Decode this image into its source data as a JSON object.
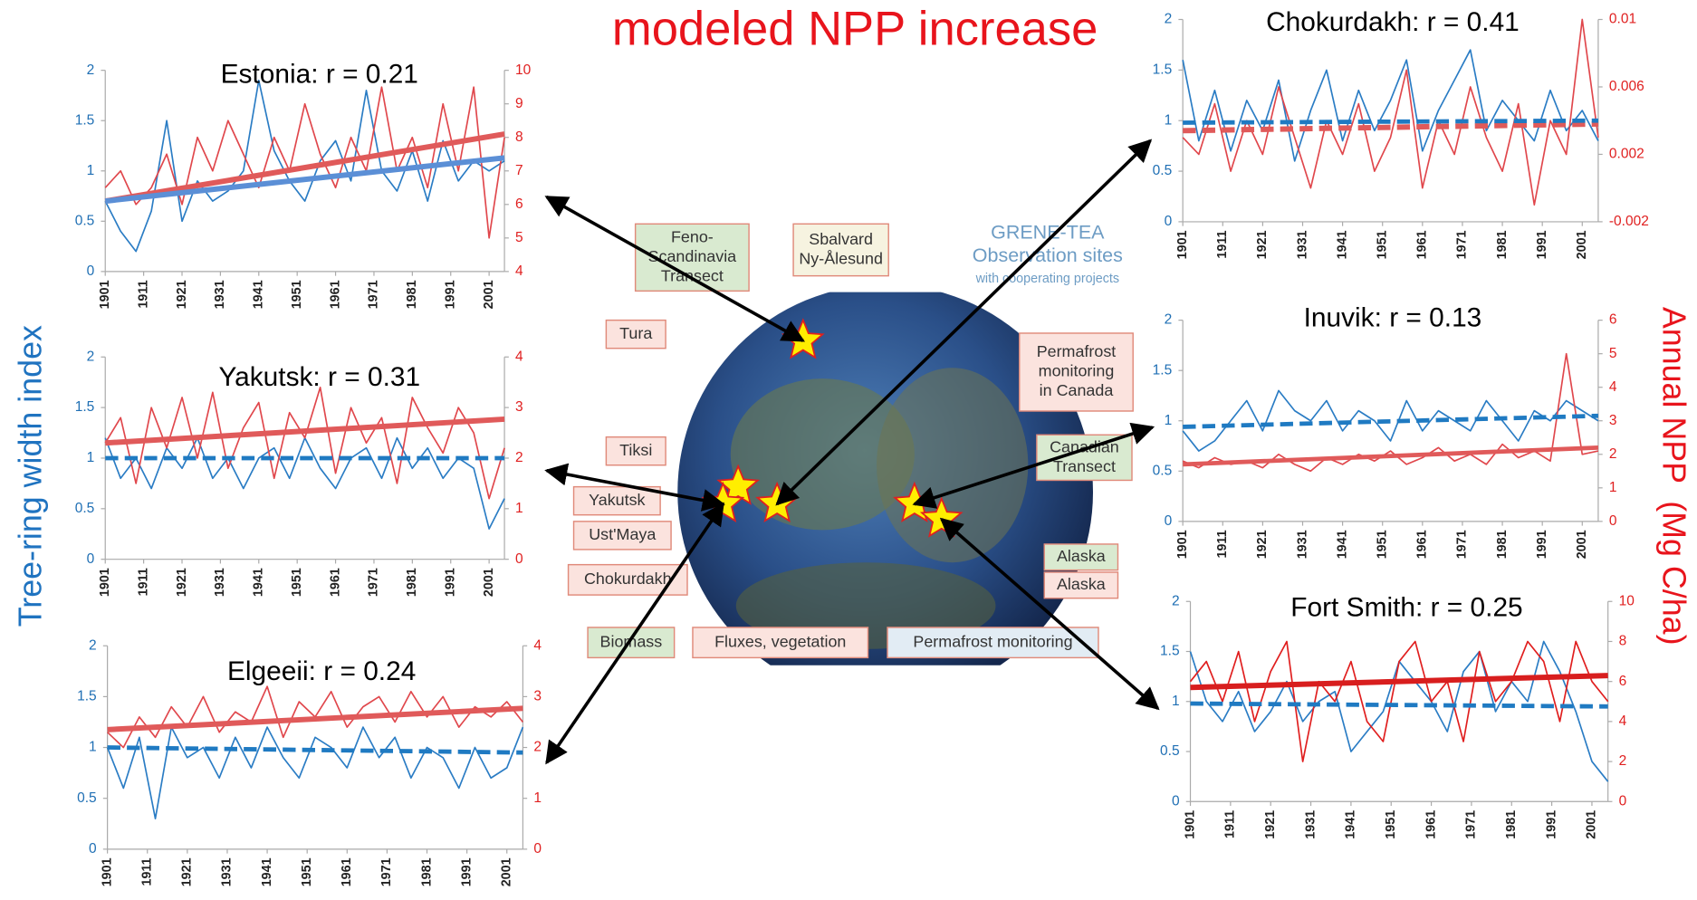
{
  "heading": "modeled NPP increase",
  "left_axis_label": "Tree-ring width index",
  "right_axis_label": "Annual NPP  (Mg C/ha)",
  "map": {
    "title": [
      "GRENE-TEA",
      "Observation sites",
      "with cooperating projects"
    ],
    "boxes": [
      {
        "lines": [
          "Feno-",
          "Scandinavia",
          "Transect"
        ]
      },
      {
        "lines": [
          "Sbalvard",
          "Ny-Ålesund"
        ]
      },
      {
        "lines": [
          "Tura"
        ]
      },
      {
        "lines": [
          "Permafrost",
          "monitoring",
          "in Canada"
        ]
      },
      {
        "lines": [
          "Tiksi"
        ]
      },
      {
        "lines": [
          "Canadian",
          "Transect"
        ]
      },
      {
        "lines": [
          "Yakutsk"
        ]
      },
      {
        "lines": [
          "Ust'Maya"
        ]
      },
      {
        "lines": [
          "Chokurdakh"
        ]
      },
      {
        "lines": [
          "Alaska"
        ]
      },
      {
        "lines": [
          "Alaska"
        ]
      },
      {
        "lines": [
          "Biomass"
        ]
      },
      {
        "lines": [
          "Fluxes, vegetation"
        ]
      },
      {
        "lines": [
          "Permafrost monitoring"
        ]
      }
    ]
  },
  "chart_data": [
    {
      "type": "line",
      "title": "Estonia: r = 0.21",
      "x": [
        1901,
        1905,
        1909,
        1913,
        1917,
        1921,
        1925,
        1929,
        1933,
        1937,
        1941,
        1945,
        1949,
        1953,
        1957,
        1961,
        1965,
        1969,
        1973,
        1977,
        1981,
        1985,
        1989,
        1993,
        1997,
        2001,
        2005
      ],
      "xlim": [
        1901,
        2005
      ],
      "xticks": [
        1901,
        1911,
        1921,
        1931,
        1941,
        1951,
        1961,
        1971,
        1981,
        1991,
        2001
      ],
      "ylim": [
        0,
        2
      ],
      "yticks": [
        0,
        0.5,
        1,
        1.5,
        2
      ],
      "y2lim": [
        4,
        10
      ],
      "y2ticks": [
        4,
        5,
        6,
        7,
        8,
        9,
        10
      ],
      "series": [
        {
          "color": "#2a7cc4",
          "values": [
            0.7,
            0.4,
            0.2,
            0.6,
            1.5,
            0.5,
            0.9,
            0.7,
            0.8,
            1.0,
            1.9,
            1.2,
            0.9,
            0.7,
            1.1,
            1.3,
            0.9,
            1.8,
            1.0,
            0.8,
            1.2,
            0.7,
            1.3,
            0.9,
            1.1,
            1.0,
            1.1
          ]
        },
        {
          "color": "#e0474c",
          "axis": "y2",
          "values": [
            6.5,
            7,
            6,
            6.5,
            7.5,
            6,
            8,
            7,
            8.5,
            7.5,
            6.5,
            8,
            7,
            9,
            7.5,
            6.5,
            8,
            7,
            9.5,
            7,
            8,
            6.5,
            9,
            7,
            9.5,
            5,
            8
          ]
        },
        {
          "color": "#e05a5a",
          "axis": "y2",
          "x": [
            1901,
            2005
          ],
          "values": [
            6.1,
            8.1
          ],
          "line_width": 5
        },
        {
          "color": "#5b8fd6",
          "x": [
            1901,
            2005
          ],
          "values": [
            0.7,
            1.13
          ],
          "line_width": 5
        }
      ]
    },
    {
      "type": "line",
      "title": "Yakutsk: r = 0.31",
      "x": [
        1901,
        1905,
        1909,
        1913,
        1917,
        1921,
        1925,
        1929,
        1933,
        1937,
        1941,
        1945,
        1949,
        1953,
        1957,
        1961,
        1965,
        1969,
        1973,
        1977,
        1981,
        1985,
        1989,
        1993,
        1997,
        2001,
        2005
      ],
      "xlim": [
        1901,
        2005
      ],
      "xticks": [
        1901,
        1911,
        1921,
        1931,
        1941,
        1951,
        1961,
        1971,
        1981,
        1991,
        2001
      ],
      "ylim": [
        0,
        2
      ],
      "yticks": [
        0,
        0.5,
        1,
        1.5,
        2
      ],
      "y2lim": [
        0,
        4
      ],
      "y2ticks": [
        0,
        1,
        2,
        3,
        4
      ],
      "series": [
        {
          "color": "#2a7cc4",
          "values": [
            1.2,
            0.8,
            1.0,
            0.7,
            1.1,
            0.9,
            1.2,
            0.8,
            1.0,
            0.7,
            1.0,
            1.1,
            0.8,
            1.2,
            0.9,
            0.7,
            1.0,
            1.1,
            0.8,
            1.2,
            0.9,
            1.1,
            0.8,
            1.0,
            0.9,
            0.3,
            0.6
          ]
        },
        {
          "color": "#e0474c",
          "axis": "y2",
          "values": [
            2.3,
            2.8,
            1.5,
            3,
            2.2,
            3.2,
            2,
            3.3,
            1.8,
            2.6,
            3.1,
            1.6,
            2.9,
            2.4,
            3.4,
            1.7,
            3,
            2.3,
            2.8,
            1.5,
            3.2,
            2.6,
            2.1,
            3,
            2.5,
            1.2,
            2.2
          ]
        },
        {
          "color": "#e05a5a",
          "axis": "y2",
          "x": [
            1901,
            2005
          ],
          "values": [
            2.3,
            2.77
          ],
          "line_width": 5
        },
        {
          "color": "#1f7ac2",
          "x": [
            1901,
            2005
          ],
          "values": [
            1.0,
            1.0
          ],
          "line_width": 4,
          "dash": true
        }
      ]
    },
    {
      "type": "line",
      "title": "Elgeeii: r = 0.24",
      "x": [
        1901,
        1905,
        1909,
        1913,
        1917,
        1921,
        1925,
        1929,
        1933,
        1937,
        1941,
        1945,
        1949,
        1953,
        1957,
        1961,
        1965,
        1969,
        1973,
        1977,
        1981,
        1985,
        1989,
        1993,
        1997,
        2001,
        2005
      ],
      "xlim": [
        1901,
        2005
      ],
      "xticks": [
        1901,
        1911,
        1921,
        1931,
        1941,
        1951,
        1961,
        1971,
        1981,
        1991,
        2001
      ],
      "ylim": [
        0,
        2
      ],
      "yticks": [
        0,
        0.5,
        1,
        1.5,
        2
      ],
      "y2lim": [
        0,
        4
      ],
      "y2ticks": [
        0,
        1,
        2,
        3,
        4
      ],
      "series": [
        {
          "color": "#2a7cc4",
          "values": [
            1.0,
            0.6,
            1.1,
            0.3,
            1.2,
            0.9,
            1.0,
            0.7,
            1.1,
            0.8,
            1.2,
            0.9,
            0.7,
            1.1,
            1.0,
            0.8,
            1.2,
            0.9,
            1.1,
            0.7,
            1.0,
            0.9,
            0.6,
            1.0,
            0.7,
            0.8,
            1.2
          ]
        },
        {
          "color": "#e0474c",
          "axis": "y2",
          "values": [
            2.3,
            2.0,
            2.6,
            2.2,
            2.8,
            2.4,
            3.0,
            2.3,
            2.7,
            2.5,
            3.2,
            2.2,
            2.9,
            2.6,
            3.1,
            2.4,
            2.8,
            3.0,
            2.5,
            3.1,
            2.6,
            3.0,
            2.4,
            2.8,
            2.6,
            2.9,
            2.5
          ]
        },
        {
          "color": "#e05a5a",
          "axis": "y2",
          "x": [
            1901,
            2005
          ],
          "values": [
            2.35,
            2.77
          ],
          "line_width": 5
        },
        {
          "color": "#1f7ac2",
          "x": [
            1901,
            2005
          ],
          "values": [
            1.0,
            0.95
          ],
          "line_width": 4,
          "dash": true
        }
      ]
    },
    {
      "type": "line",
      "title": "Chokurdakh: r = 0.41",
      "x": [
        1901,
        1905,
        1909,
        1913,
        1917,
        1921,
        1925,
        1929,
        1933,
        1937,
        1941,
        1945,
        1949,
        1953,
        1957,
        1961,
        1965,
        1969,
        1973,
        1977,
        1981,
        1985,
        1989,
        1993,
        1997,
        2001,
        2005
      ],
      "xlim": [
        1901,
        2005
      ],
      "xticks": [
        1901,
        1911,
        1921,
        1931,
        1941,
        1951,
        1961,
        1971,
        1981,
        1991,
        2001
      ],
      "ylim": [
        0,
        2
      ],
      "yticks": [
        0,
        0.5,
        1,
        1.5,
        2
      ],
      "y2lim": [
        -0.002,
        0.01
      ],
      "y2ticks": [
        -0.002,
        0.002,
        0.006,
        0.01
      ],
      "series": [
        {
          "color": "#2a7cc4",
          "values": [
            1.6,
            0.8,
            1.3,
            0.7,
            1.2,
            0.9,
            1.4,
            0.6,
            1.1,
            1.5,
            0.8,
            1.3,
            0.9,
            1.2,
            1.6,
            0.7,
            1.1,
            1.4,
            1.7,
            0.9,
            1.2,
            1.0,
            0.8,
            1.3,
            0.9,
            1.1,
            0.8
          ]
        },
        {
          "color": "#e0474c",
          "axis": "y2",
          "values": [
            0.003,
            0.002,
            0.005,
            0.001,
            0.004,
            0.002,
            0.006,
            0.003,
            0.0,
            0.004,
            0.002,
            0.005,
            0.001,
            0.003,
            0.007,
            0.0,
            0.004,
            0.002,
            0.006,
            0.003,
            0.001,
            0.005,
            -0.001,
            0.004,
            0.002,
            0.01,
            0.003
          ]
        },
        {
          "color": "#e05a5a",
          "axis": "y2",
          "x": [
            1901,
            2005
          ],
          "values": [
            0.0034,
            0.0038
          ],
          "line_width": 5,
          "dash": true
        },
        {
          "color": "#1f7ac2",
          "x": [
            1901,
            2005
          ],
          "values": [
            0.98,
            1.0
          ],
          "line_width": 4,
          "dash": true
        }
      ]
    },
    {
      "type": "line",
      "title": "Inuvik: r = 0.13",
      "x": [
        1901,
        1905,
        1909,
        1913,
        1917,
        1921,
        1925,
        1929,
        1933,
        1937,
        1941,
        1945,
        1949,
        1953,
        1957,
        1961,
        1965,
        1969,
        1973,
        1977,
        1981,
        1985,
        1989,
        1993,
        1997,
        2001,
        2005
      ],
      "xlim": [
        1901,
        2005
      ],
      "xticks": [
        1901,
        1911,
        1921,
        1931,
        1941,
        1951,
        1961,
        1971,
        1981,
        1991,
        2001
      ],
      "ylim": [
        0,
        2
      ],
      "yticks": [
        0,
        0.5,
        1,
        1.5,
        2
      ],
      "y2lim": [
        0,
        6
      ],
      "y2ticks": [
        0,
        1,
        2,
        3,
        4,
        5,
        6
      ],
      "series": [
        {
          "color": "#2a7cc4",
          "values": [
            0.9,
            0.7,
            0.8,
            1.0,
            1.2,
            0.9,
            1.3,
            1.1,
            1.0,
            1.2,
            0.9,
            1.1,
            1.0,
            0.8,
            1.2,
            0.9,
            1.1,
            1.0,
            0.9,
            1.2,
            1.0,
            0.8,
            1.1,
            1.0,
            1.2,
            1.1,
            1.0
          ]
        },
        {
          "color": "#e0474c",
          "axis": "y2",
          "values": [
            1.8,
            1.6,
            1.9,
            1.7,
            1.8,
            1.6,
            2.0,
            1.7,
            1.5,
            1.9,
            1.7,
            2.0,
            1.8,
            2.1,
            1.7,
            1.9,
            2.2,
            1.8,
            2.0,
            1.7,
            2.3,
            1.9,
            2.1,
            1.8,
            5.0,
            2.0,
            2.1
          ]
        },
        {
          "color": "#e05a5a",
          "axis": "y2",
          "x": [
            1901,
            2005
          ],
          "values": [
            1.7,
            2.2
          ],
          "line_width": 4
        },
        {
          "color": "#1f7ac2",
          "x": [
            1901,
            2005
          ],
          "values": [
            0.94,
            1.05
          ],
          "line_width": 4,
          "dash": true
        }
      ]
    },
    {
      "type": "line",
      "title": "Fort Smith: r = 0.25",
      "x": [
        1901,
        1905,
        1909,
        1913,
        1917,
        1921,
        1925,
        1929,
        1933,
        1937,
        1941,
        1945,
        1949,
        1953,
        1957,
        1961,
        1965,
        1969,
        1973,
        1977,
        1981,
        1985,
        1989,
        1993,
        1997,
        2001,
        2005
      ],
      "xlim": [
        1901,
        2005
      ],
      "xticks": [
        1901,
        1911,
        1921,
        1931,
        1941,
        1951,
        1961,
        1971,
        1981,
        1991,
        2001
      ],
      "ylim": [
        0,
        2
      ],
      "yticks": [
        0,
        0.5,
        1,
        1.5,
        2
      ],
      "y2lim": [
        0,
        10
      ],
      "y2ticks": [
        0,
        2,
        4,
        6,
        8,
        10
      ],
      "series": [
        {
          "color": "#2a7cc4",
          "values": [
            1.5,
            1.0,
            0.8,
            1.1,
            0.7,
            0.9,
            1.2,
            0.8,
            1.0,
            1.1,
            0.5,
            0.7,
            0.9,
            1.4,
            1.2,
            1.0,
            0.7,
            1.3,
            1.5,
            0.9,
            1.2,
            1.0,
            1.6,
            1.3,
            0.9,
            0.4,
            0.2
          ]
        },
        {
          "color": "#e01e1e",
          "axis": "y2",
          "values": [
            6,
            7,
            5,
            7.5,
            4,
            6.5,
            8,
            2,
            6,
            5,
            7,
            4,
            3,
            7,
            8,
            5,
            6,
            3,
            7.5,
            5,
            6,
            8,
            7,
            4,
            8,
            6,
            5
          ]
        },
        {
          "color": "#d81e1e",
          "axis": "y2",
          "x": [
            1901,
            2005
          ],
          "values": [
            5.7,
            6.3
          ],
          "line_width": 5
        },
        {
          "color": "#1f7ac2",
          "x": [
            1901,
            2005
          ],
          "values": [
            0.98,
            0.95
          ],
          "line_width": 4,
          "dash": true
        }
      ]
    }
  ]
}
